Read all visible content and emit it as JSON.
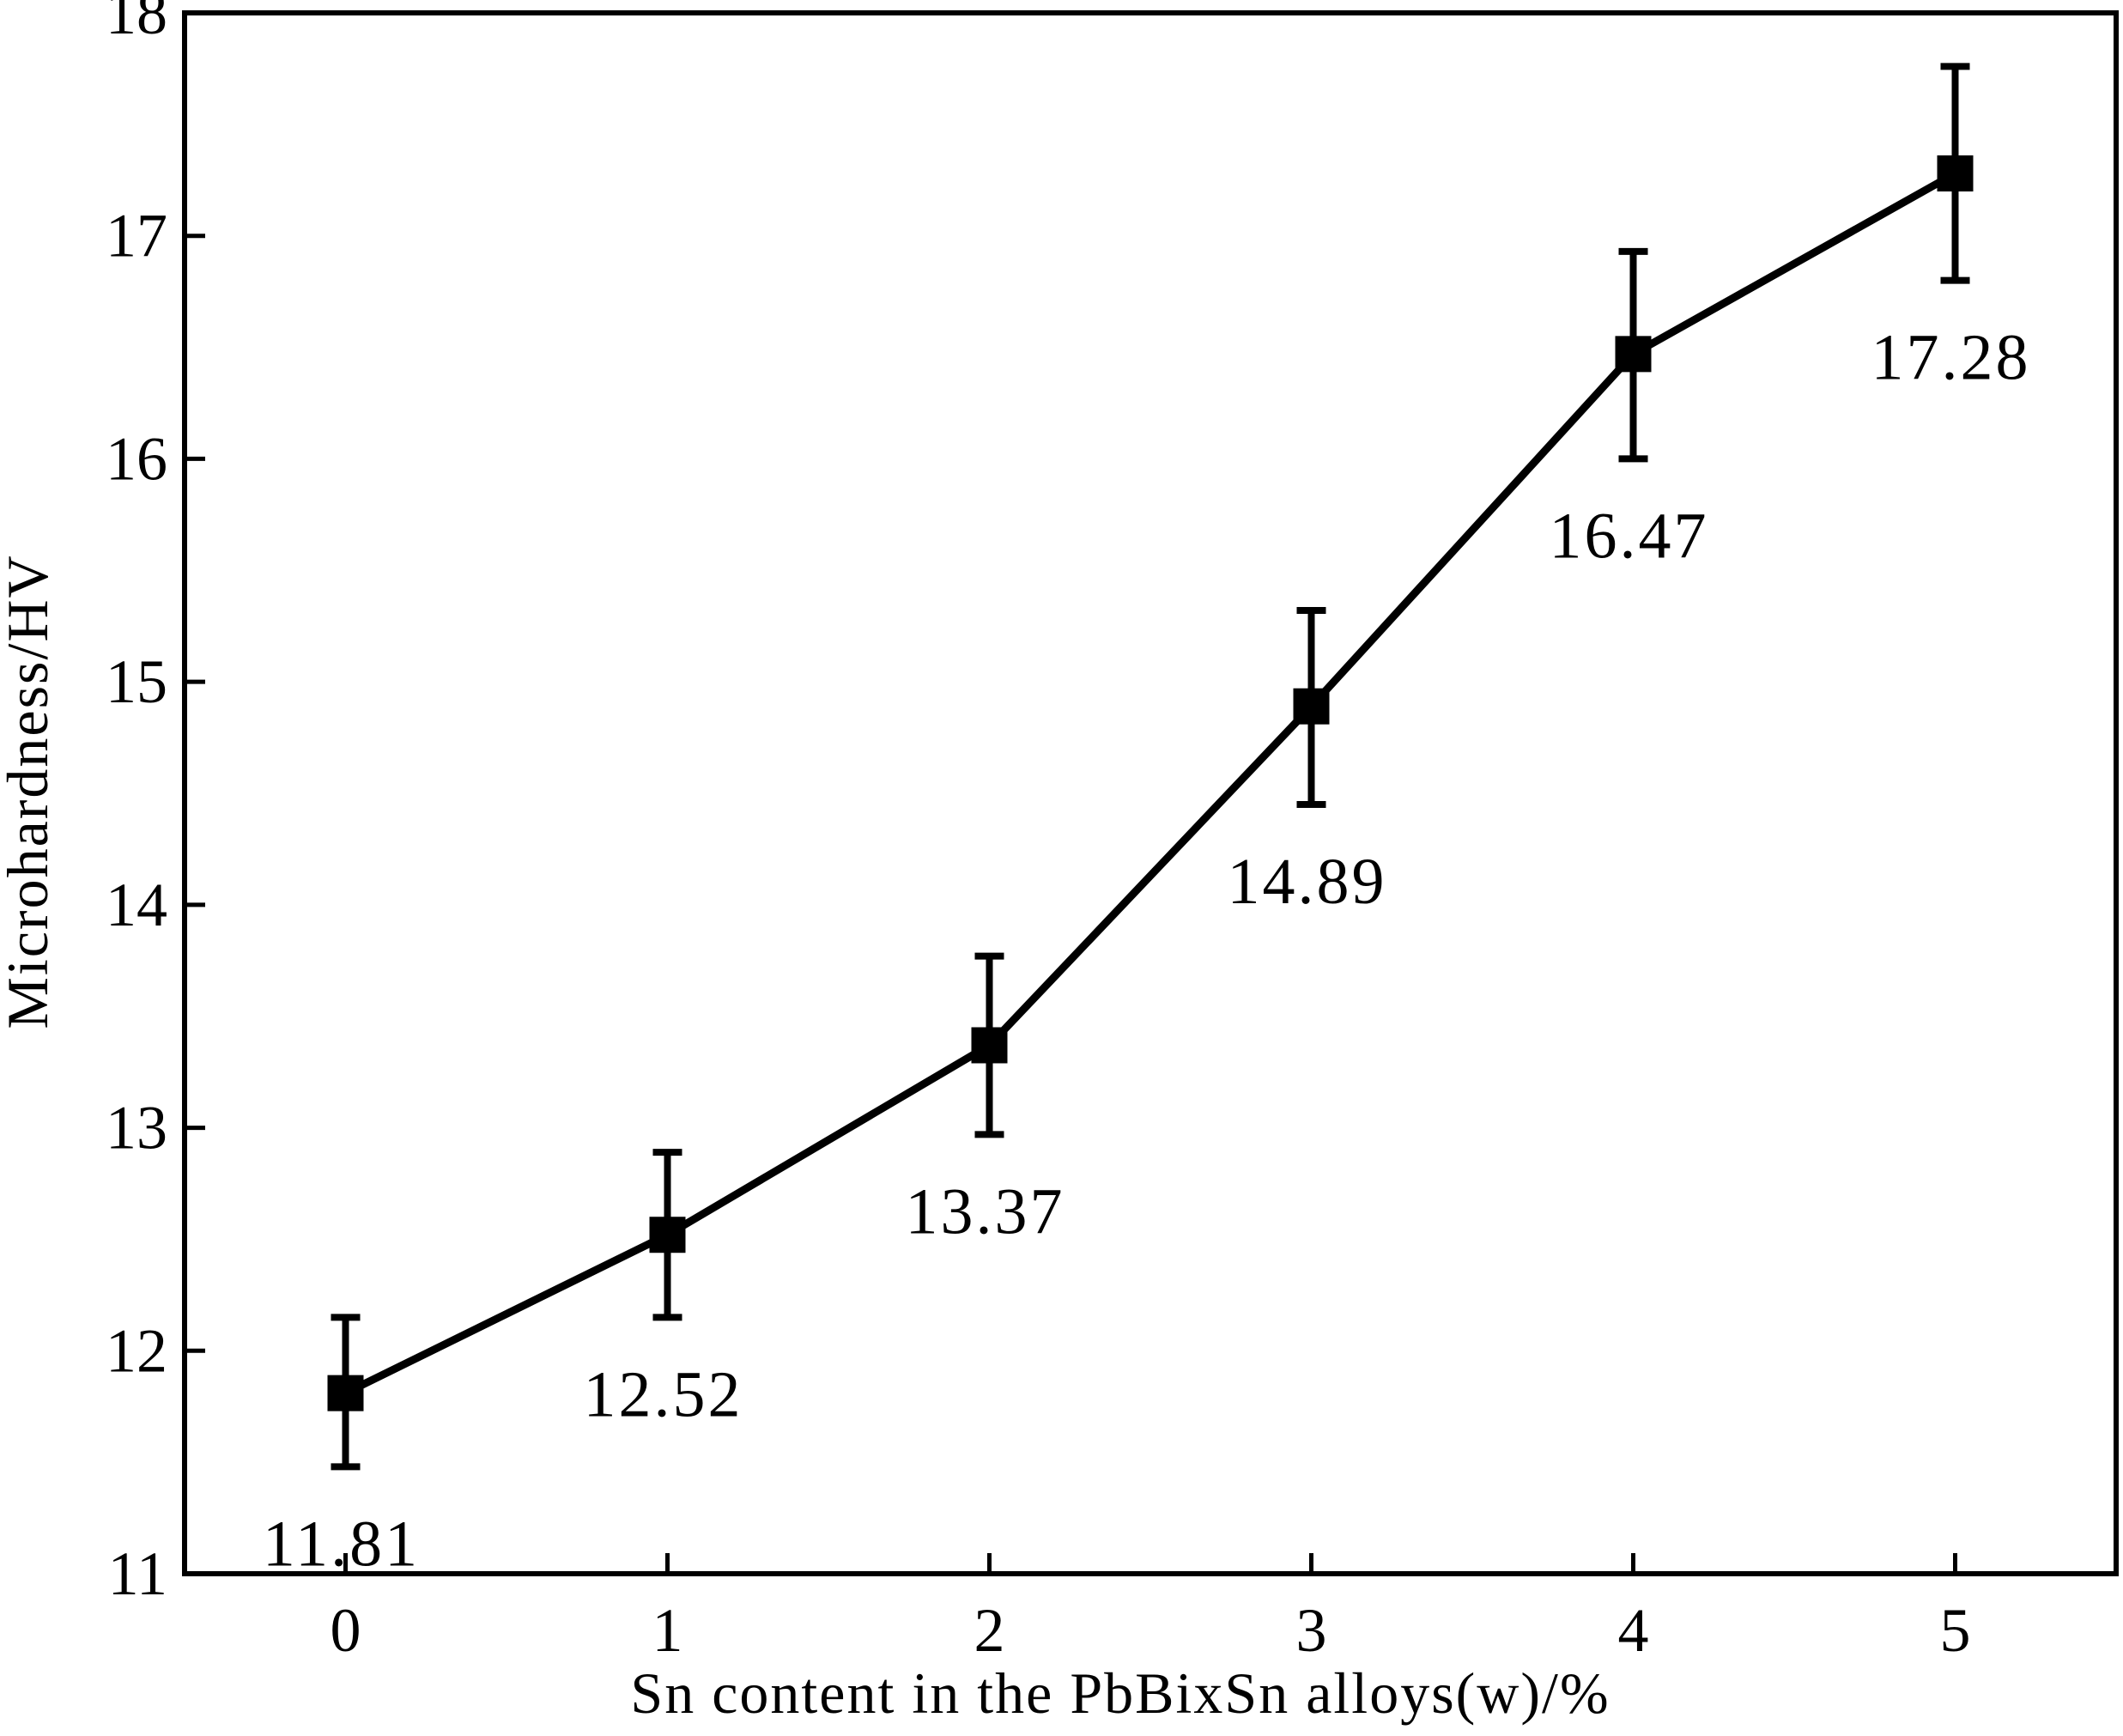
{
  "chart_data": {
    "type": "line",
    "title": "",
    "xlabel": "Sn content in the PbBixSn alloys(w)/%",
    "ylabel": "Microhardness/HV",
    "xlim": [
      -0.5,
      5.5
    ],
    "ylim": [
      11,
      18
    ],
    "x_ticks": [
      0,
      1,
      2,
      3,
      4,
      5
    ],
    "y_ticks": [
      11,
      12,
      13,
      14,
      15,
      16,
      17,
      18
    ],
    "x": [
      0,
      1,
      2,
      3,
      4,
      5
    ],
    "values": [
      11.81,
      12.52,
      13.37,
      14.89,
      16.47,
      17.28
    ],
    "error_low": [
      11.48,
      12.15,
      12.97,
      14.45,
      16.0,
      16.8
    ],
    "error_high": [
      12.15,
      12.89,
      13.77,
      15.32,
      16.93,
      17.76
    ],
    "data_labels": [
      "11.81",
      "12.52",
      "13.37",
      "14.89",
      "16.47",
      "17.28"
    ],
    "marker": "square",
    "grid": false,
    "legend": "none",
    "colors": {
      "line": "#000000",
      "marker": "#000000",
      "background": "#ffffff"
    }
  }
}
